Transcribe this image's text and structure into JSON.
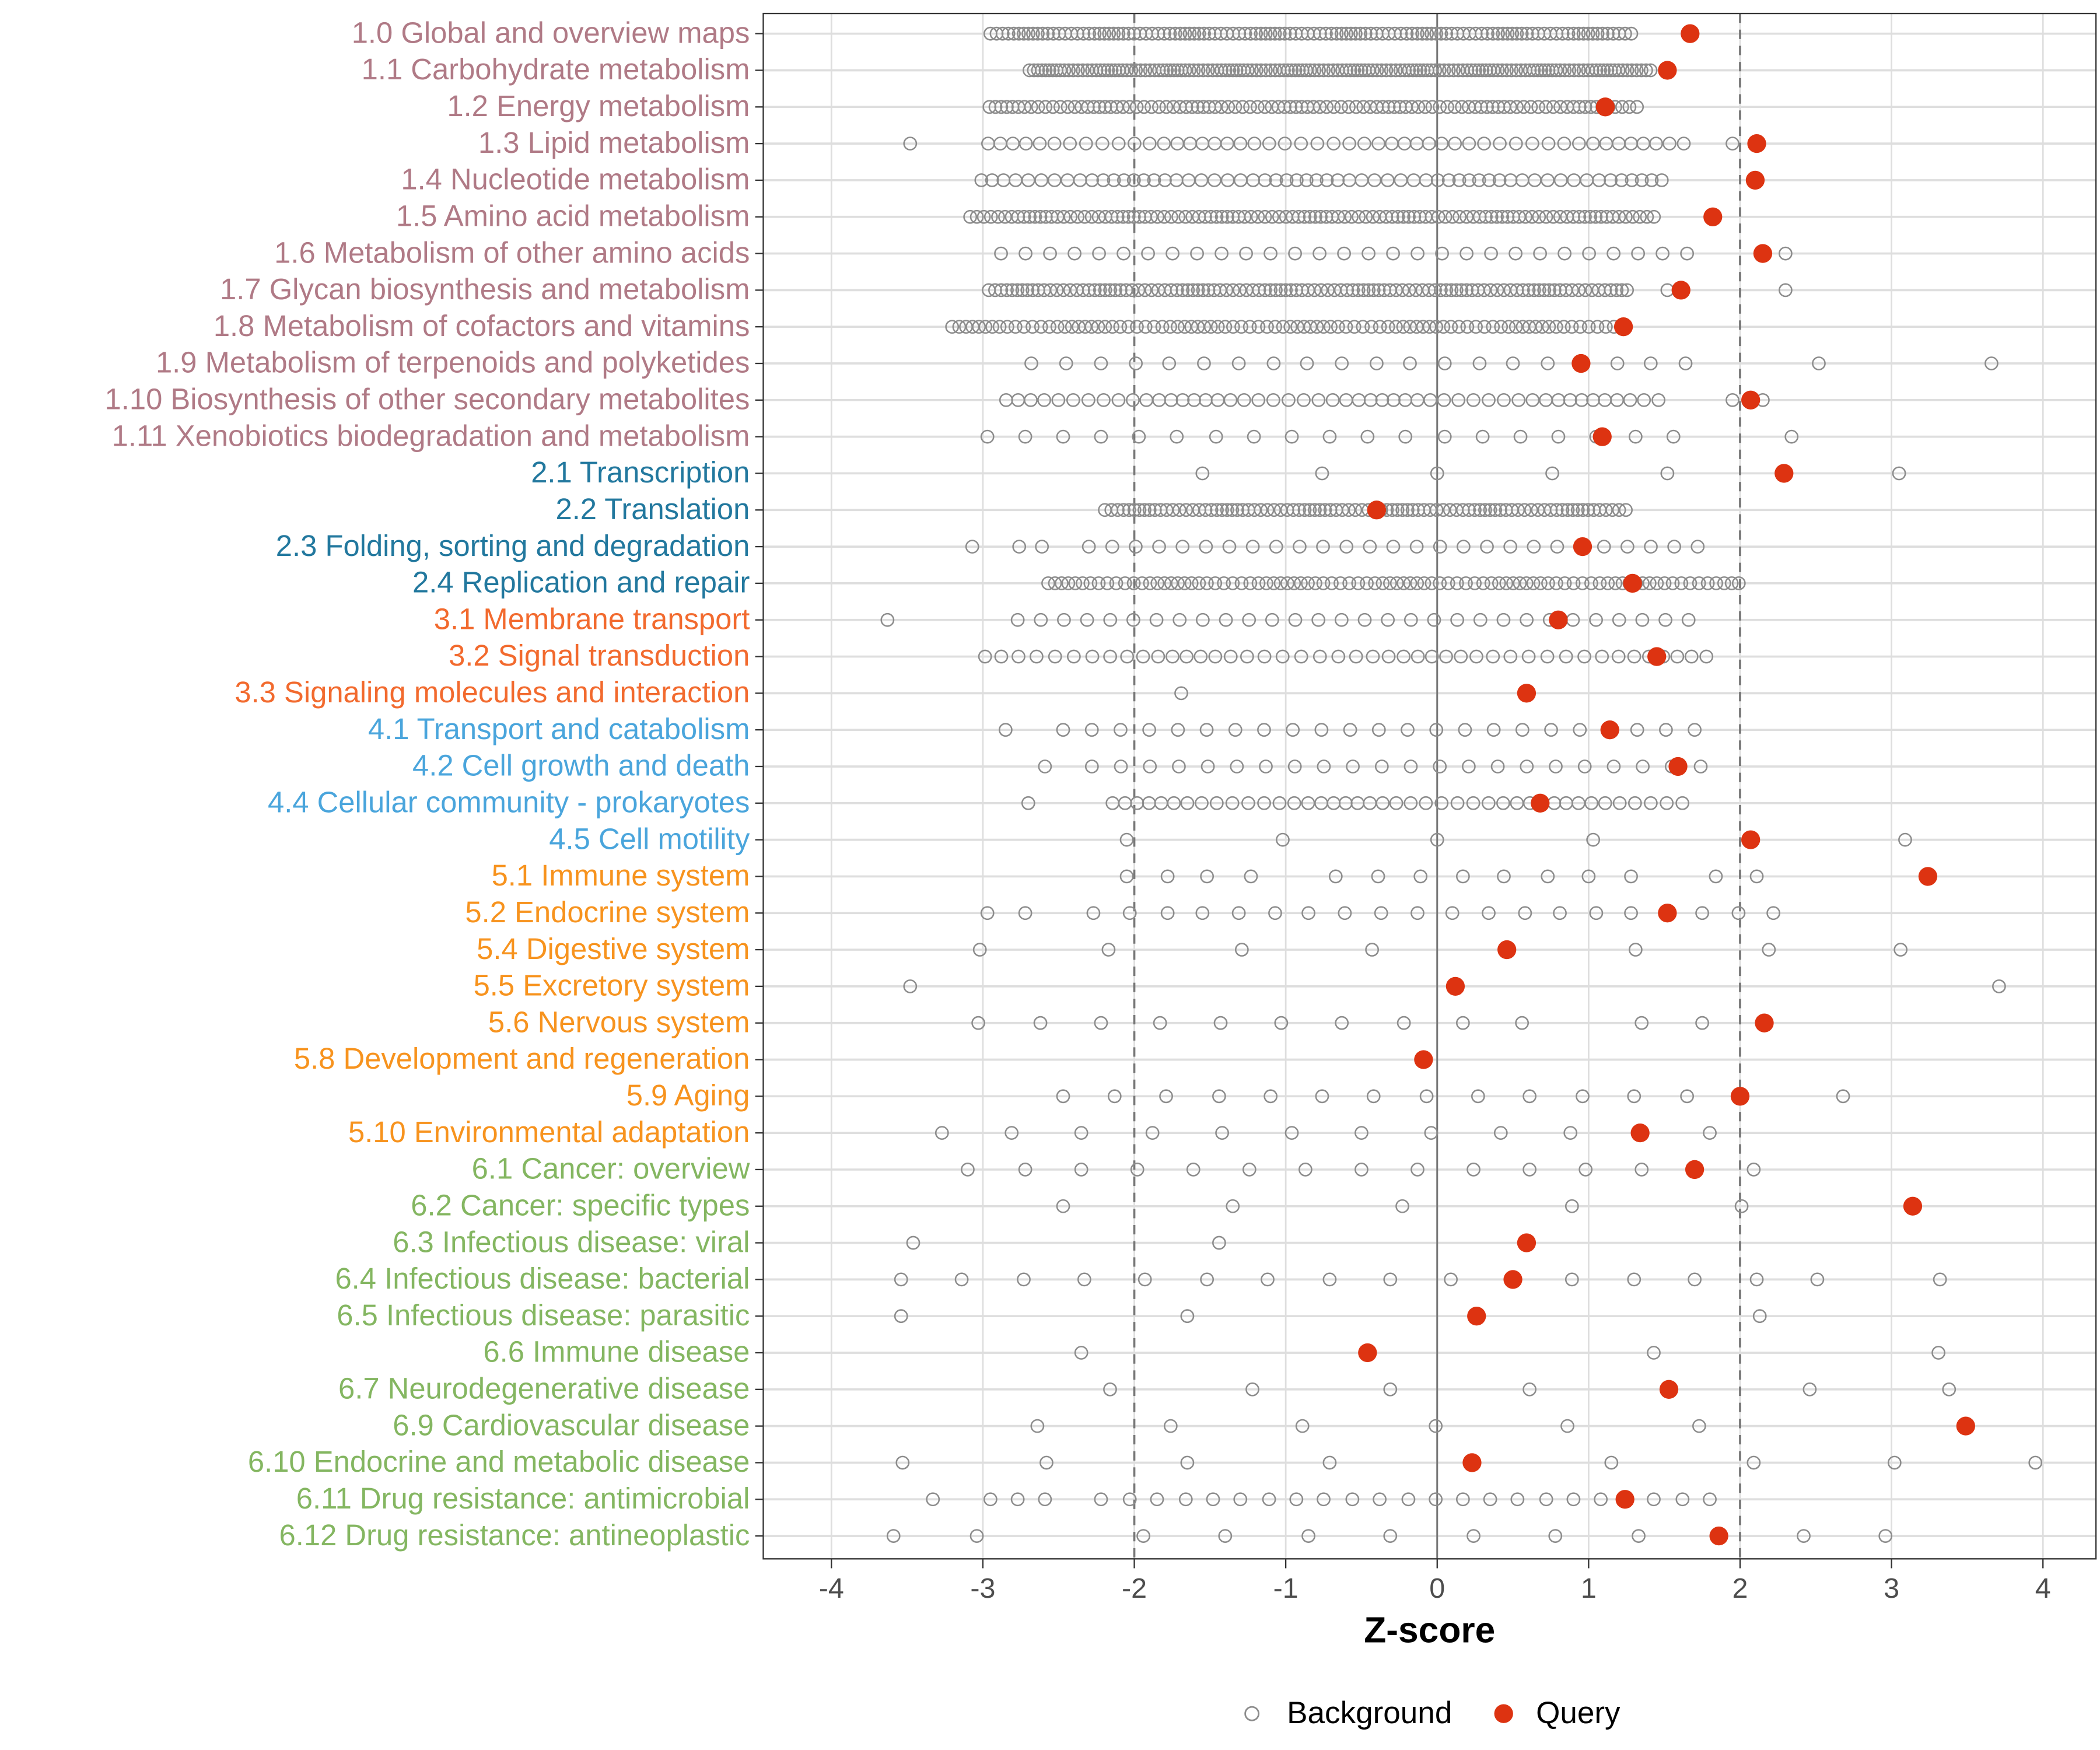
{
  "chart_data": {
    "type": "scatter",
    "xlabel": "Z-score",
    "ylabel": "",
    "xlim": [
      -4.45,
      4.35
    ],
    "xticks": [
      -4,
      -3,
      -2,
      -1,
      0,
      1,
      2,
      3,
      4
    ],
    "xtick_labels": [
      "-4",
      "-3",
      "-2",
      "-1",
      "0",
      "1",
      "2",
      "3",
      "4"
    ],
    "reference_lines": {
      "dashed": [
        -2,
        2
      ],
      "solid": [
        0
      ]
    },
    "grid": true,
    "legend": {
      "placement": "bottom",
      "entries": [
        {
          "name": "Background",
          "marker": "open-circle",
          "color": "#8c8c8c"
        },
        {
          "name": "Query",
          "marker": "filled-circle",
          "color": "#DD3311"
        }
      ]
    },
    "group_colors": {
      "1": "#B07A86",
      "2": "#22789E",
      "3": "#F26A2E",
      "4": "#4AA5DC",
      "5": "#F7931E",
      "6": "#84B661"
    },
    "categories": [
      {
        "label": "1.0 Global and overview maps",
        "group": "1",
        "query": 1.67,
        "background": {
          "range": [
            -2.95,
            1.28
          ],
          "n": 120
        }
      },
      {
        "label": "1.1 Carbohydrate metabolism",
        "group": "1",
        "query": 1.52,
        "background": {
          "range": [
            -2.7,
            1.4
          ],
          "n": 150
        }
      },
      {
        "label": "1.2 Energy metabolism",
        "group": "1",
        "query": 1.11,
        "background": {
          "range": [
            -2.97,
            1.32
          ],
          "n": 100
        }
      },
      {
        "label": "1.3 Lipid metabolism",
        "group": "1",
        "query": 2.11,
        "background": {
          "range": [
            -2.97,
            1.66
          ],
          "n": 50,
          "extra": [
            -3.48,
            1.95
          ]
        }
      },
      {
        "label": "1.4 Nucleotide metabolism",
        "group": "1",
        "query": 2.1,
        "background": {
          "range": [
            -2.99,
            1.5
          ],
          "n": 60
        }
      },
      {
        "label": "1.5 Amino acid metabolism",
        "group": "1",
        "query": 1.82,
        "background": {
          "range": [
            -3.07,
            1.42
          ],
          "n": 110
        }
      },
      {
        "label": "1.6 Metabolism of other amino acids",
        "group": "1",
        "query": 2.15,
        "background": {
          "range": [
            -2.88,
            1.65
          ],
          "n": 29,
          "extra": [
            2.3
          ]
        }
      },
      {
        "label": "1.7 Glycan biosynthesis and metabolism",
        "group": "1",
        "query": 1.61,
        "background": {
          "range": [
            -2.97,
            1.25
          ],
          "n": 110,
          "extra": [
            1.52,
            2.3
          ]
        }
      },
      {
        "label": "1.8 Metabolism of cofactors and vitamins",
        "group": "1",
        "query": 1.23,
        "background": {
          "range": [
            -3.22,
            1.2
          ],
          "n": 90
        }
      },
      {
        "label": "1.9 Metabolism of terpenoids and polyketides",
        "group": "1",
        "query": 0.95,
        "background": [
          -2.68,
          -2.45,
          -2.22,
          -1.99,
          -1.77,
          -1.54,
          -1.31,
          -1.08,
          -0.86,
          -0.63,
          -0.4,
          -0.18,
          0.05,
          0.28,
          0.5,
          0.73,
          0.96,
          1.19,
          1.41,
          1.64,
          2.52,
          3.66
        ]
      },
      {
        "label": "1.10 Biosynthesis of other secondary metabolites",
        "group": "1",
        "query": 2.07,
        "background": {
          "range": [
            -2.83,
            1.48
          ],
          "n": 50,
          "extra": [
            1.95,
            2.15
          ]
        }
      },
      {
        "label": "1.11 Xenobiotics biodegradation and metabolism",
        "group": "1",
        "query": 1.09,
        "background": [
          -2.97,
          -2.72,
          -2.47,
          -2.22,
          -1.97,
          -1.72,
          -1.46,
          -1.21,
          -0.96,
          -0.71,
          -0.46,
          -0.21,
          0.05,
          0.3,
          0.55,
          0.8,
          1.05,
          1.31,
          1.56,
          2.34
        ]
      },
      {
        "label": "2.1 Transcription",
        "group": "2",
        "query": 2.29,
        "background": [
          -1.55,
          -0.76,
          0,
          0.76,
          1.52,
          3.05
        ]
      },
      {
        "label": "2.2 Translation",
        "group": "2",
        "query": -0.4,
        "background": {
          "range": [
            -2.2,
            1.24
          ],
          "n": 90
        }
      },
      {
        "label": "2.3 Folding, sorting and degradation",
        "group": "2",
        "query": 0.96,
        "background": {
          "range": [
            -2.3,
            1.72
          ],
          "n": 27,
          "extra": [
            -3.07,
            -2.76,
            -2.61
          ]
        }
      },
      {
        "label": "2.4 Replication and repair",
        "group": "2",
        "query": 1.29,
        "background": {
          "range": [
            -2.58,
            1.98
          ],
          "n": 90
        }
      },
      {
        "label": "3.1 Membrane transport",
        "group": "3",
        "query": 0.8,
        "background": {
          "range": [
            -2.77,
            1.66
          ],
          "n": 30,
          "extra": [
            -3.63
          ]
        }
      },
      {
        "label": "3.2 Signal transduction",
        "group": "3",
        "query": 1.45,
        "background": {
          "range": [
            -2.95,
            1.81
          ],
          "n": 45
        }
      },
      {
        "label": "3.3 Signaling molecules and interaction",
        "group": "3",
        "query": 0.59,
        "background": [
          -1.69
        ]
      },
      {
        "label": "4.1 Transport and catabolism",
        "group": "4",
        "query": 1.14,
        "background": {
          "range": [
            -2.47,
            1.7
          ],
          "n": 23,
          "extra": [
            -2.85
          ]
        }
      },
      {
        "label": "4.2 Cell growth and death",
        "group": "4",
        "query": 1.59,
        "background": {
          "range": [
            -2.28,
            1.74
          ],
          "n": 22,
          "extra": [
            -2.59
          ]
        }
      },
      {
        "label": "4.4 Cellular community - prokaryotes",
        "group": "4",
        "query": 0.68,
        "background": {
          "range": [
            -2.17,
            1.6
          ],
          "n": 42,
          "extra": [
            -2.7
          ]
        }
      },
      {
        "label": "4.5 Cell motility",
        "group": "4",
        "query": 2.07,
        "background": [
          -2.05,
          -1.02,
          0,
          1.03,
          3.09
        ]
      },
      {
        "label": "5.1 Immune system",
        "group": "5",
        "query": 3.24,
        "background": [
          -2.05,
          -1.78,
          -1.52,
          -1.23,
          -0.67,
          -0.39,
          -0.11,
          0.17,
          0.44,
          0.73,
          1.0,
          1.28,
          1.84,
          2.11
        ]
      },
      {
        "label": "5.2 Endocrine system",
        "group": "5",
        "query": 1.52,
        "background": [
          -2.97,
          -2.72,
          -2.27,
          -2.03,
          -1.78,
          -1.55,
          -1.31,
          -1.07,
          -0.85,
          -0.61,
          -0.37,
          -0.13,
          0.1,
          0.34,
          0.58,
          0.81,
          1.05,
          1.28,
          1.75,
          1.99,
          2.22
        ]
      },
      {
        "label": "5.4 Digestive system",
        "group": "5",
        "query": 0.46,
        "background": [
          -3.02,
          -2.17,
          -1.29,
          -0.43,
          1.31,
          2.19,
          3.06
        ]
      },
      {
        "label": "5.5 Excretory system",
        "group": "5",
        "query": 0.12,
        "background": [
          -3.48,
          3.71
        ]
      },
      {
        "label": "5.6 Nervous system",
        "group": "5",
        "query": 2.16,
        "background": [
          -3.03,
          -2.62,
          -2.22,
          -1.83,
          -1.43,
          -1.03,
          -0.63,
          -0.22,
          0.17,
          0.56,
          1.35,
          1.75
        ]
      },
      {
        "label": "5.8 Development and regeneration",
        "group": "5",
        "query": -0.09,
        "background": []
      },
      {
        "label": "5.9 Aging",
        "group": "5",
        "query": 2.0,
        "background": [
          -2.47,
          -2.13,
          -1.79,
          -1.44,
          -1.1,
          -0.76,
          -0.42,
          -0.07,
          0.27,
          0.61,
          0.96,
          1.3,
          1.65,
          2.68
        ]
      },
      {
        "label": "5.10 Environmental adaptation",
        "group": "5",
        "query": 1.34,
        "background": [
          -3.27,
          -2.81,
          -2.35,
          -1.88,
          -1.42,
          -0.96,
          -0.5,
          -0.04,
          0.42,
          0.88,
          1.8
        ]
      },
      {
        "label": "6.1 Cancer: overview",
        "group": "6",
        "query": 1.7,
        "background": [
          -3.1,
          -2.72,
          -2.35,
          -1.98,
          -1.61,
          -1.24,
          -0.87,
          -0.5,
          -0.13,
          0.24,
          0.61,
          0.98,
          1.35,
          2.09
        ]
      },
      {
        "label": "6.2 Cancer: specific types",
        "group": "6",
        "query": 3.14,
        "background": [
          -2.47,
          -1.35,
          -0.23,
          0.89,
          2.01
        ]
      },
      {
        "label": "6.3 Infectious disease: viral",
        "group": "6",
        "query": 0.59,
        "background": [
          -3.46,
          -1.44
        ]
      },
      {
        "label": "6.4 Infectious disease: bacterial",
        "group": "6",
        "query": 0.5,
        "background": [
          -3.54,
          -3.14,
          -2.73,
          -2.33,
          -1.93,
          -1.52,
          -1.12,
          -0.71,
          -0.31,
          0.09,
          0.89,
          1.3,
          1.7,
          2.11,
          2.51,
          3.32
        ]
      },
      {
        "label": "6.5 Infectious disease: parasitic",
        "group": "6",
        "query": 0.26,
        "background": [
          -3.54,
          -1.65,
          2.13
        ]
      },
      {
        "label": "6.6 Immune disease",
        "group": "6",
        "query": -0.46,
        "background": [
          -2.35,
          1.43,
          3.31
        ]
      },
      {
        "label": "6.7 Neurodegenerative disease",
        "group": "6",
        "query": 1.53,
        "background": [
          -2.16,
          -1.22,
          -0.31,
          0.61,
          2.46,
          3.38
        ]
      },
      {
        "label": "6.9 Cardiovascular disease",
        "group": "6",
        "query": 3.49,
        "background": [
          -2.64,
          -1.76,
          -0.89,
          -0.01,
          0.86,
          1.73
        ]
      },
      {
        "label": "6.10 Endocrine and metabolic disease",
        "group": "6",
        "query": 0.23,
        "background": [
          -3.53,
          -2.58,
          -1.65,
          -0.71,
          1.15,
          2.09,
          3.02,
          3.95
        ]
      },
      {
        "label": "6.11 Drug resistance: antimicrobial",
        "group": "6",
        "query": 1.24,
        "background": [
          -3.33,
          -2.95,
          -2.77,
          -2.59,
          -2.22,
          -2.03,
          -1.85,
          -1.66,
          -1.48,
          -1.3,
          -1.11,
          -0.93,
          -0.75,
          -0.56,
          -0.38,
          -0.19,
          -0.01,
          0.17,
          0.35,
          0.53,
          0.72,
          0.9,
          1.08,
          1.43,
          1.62,
          1.8
        ]
      },
      {
        "label": "6.12 Drug resistance: antineoplastic",
        "group": "6",
        "query": 1.86,
        "background": [
          -3.59,
          -3.04,
          -1.94,
          -1.4,
          -0.85,
          -0.31,
          0.24,
          0.78,
          1.33,
          2.42,
          2.96
        ]
      }
    ]
  }
}
